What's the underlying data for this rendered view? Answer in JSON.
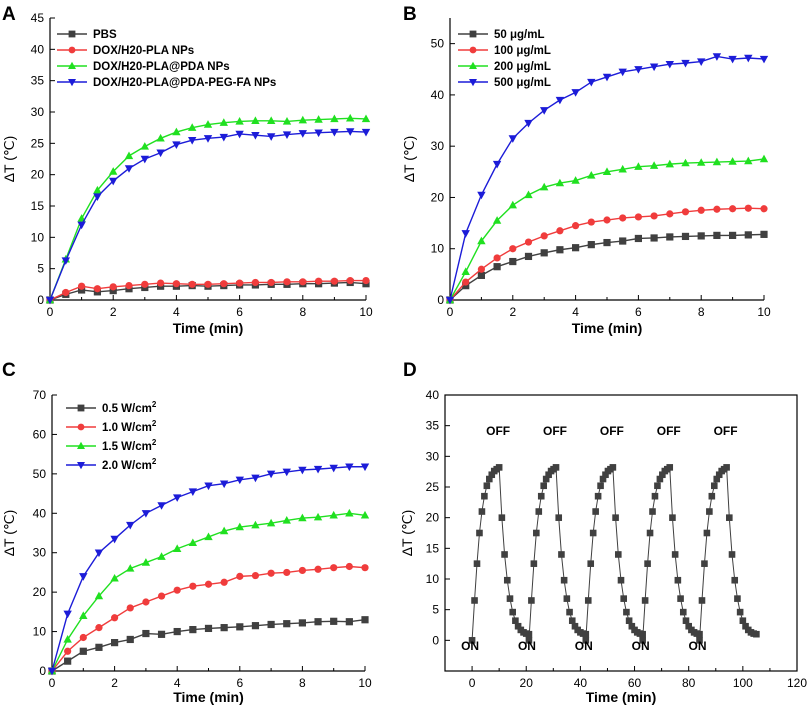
{
  "colors": {
    "black": "#404040",
    "red": "#f03c3c",
    "green": "#20e020",
    "blue": "#1c1cd8"
  },
  "chart_data": [
    {
      "panel": "A",
      "type": "line",
      "xlabel": "Time (min)",
      "ylabel": "ΔT (℃)",
      "xlim": [
        0,
        10
      ],
      "ylim": [
        0,
        45
      ],
      "xticks": [
        0,
        2,
        4,
        6,
        8,
        10
      ],
      "yticks": [
        0,
        5,
        10,
        15,
        20,
        25,
        30,
        35,
        40,
        45
      ],
      "x": [
        0,
        0.5,
        1,
        1.5,
        2,
        2.5,
        3,
        3.5,
        4,
        4.5,
        5,
        5.5,
        6,
        6.5,
        7,
        7.5,
        8,
        8.5,
        9,
        9.5,
        10
      ],
      "legend_position": "top-left",
      "series": [
        {
          "name": "PBS",
          "color": "black",
          "marker": "square",
          "values": [
            0,
            0.9,
            1.6,
            1.3,
            1.5,
            1.8,
            2.0,
            2.2,
            2.2,
            2.3,
            2.2,
            2.3,
            2.4,
            2.4,
            2.5,
            2.5,
            2.6,
            2.6,
            2.7,
            2.8,
            2.6
          ]
        },
        {
          "name": "DOX/H20-PLA NPs",
          "color": "red",
          "marker": "circle",
          "values": [
            0,
            1.2,
            2.2,
            1.8,
            2.1,
            2.3,
            2.5,
            2.7,
            2.6,
            2.5,
            2.5,
            2.6,
            2.7,
            2.8,
            2.8,
            2.9,
            2.9,
            3.0,
            3.0,
            3.1,
            3.1
          ]
        },
        {
          "name": "DOX/H20-PLA@PDA NPs",
          "color": "green",
          "marker": "triangle-up",
          "values": [
            0,
            6.5,
            13.0,
            17.5,
            20.5,
            23.0,
            24.5,
            25.8,
            26.8,
            27.5,
            28.0,
            28.3,
            28.5,
            28.6,
            28.6,
            28.5,
            28.7,
            28.8,
            28.9,
            29.0,
            28.9
          ]
        },
        {
          "name": "DOX/H20-PLA@PDA-PEG-FA NPs",
          "color": "blue",
          "marker": "triangle-down",
          "values": [
            0,
            6.3,
            12.0,
            16.5,
            19.0,
            21.0,
            22.5,
            23.5,
            24.8,
            25.5,
            25.8,
            26.0,
            26.5,
            26.3,
            26.1,
            26.4,
            26.6,
            26.7,
            26.8,
            26.9,
            26.8
          ]
        }
      ]
    },
    {
      "panel": "B",
      "type": "line",
      "xlabel": "Time (min)",
      "ylabel": "ΔT (℃)",
      "xlim": [
        0,
        10
      ],
      "ylim": [
        0,
        55
      ],
      "xticks": [
        0,
        2,
        4,
        6,
        8,
        10
      ],
      "yticks": [
        0,
        10,
        20,
        30,
        40,
        50
      ],
      "x": [
        0,
        0.5,
        1,
        1.5,
        2,
        2.5,
        3,
        3.5,
        4,
        4.5,
        5,
        5.5,
        6,
        6.5,
        7,
        7.5,
        8,
        8.5,
        9,
        9.5,
        10
      ],
      "legend_position": "top-left",
      "series": [
        {
          "name": "50 μg/mL",
          "color": "black",
          "marker": "square",
          "values": [
            0,
            2.8,
            4.8,
            6.5,
            7.5,
            8.5,
            9.2,
            9.8,
            10.2,
            10.8,
            11.2,
            11.5,
            12.0,
            12.1,
            12.3,
            12.4,
            12.5,
            12.6,
            12.6,
            12.7,
            12.8
          ]
        },
        {
          "name": "100 μg/mL",
          "color": "red",
          "marker": "circle",
          "values": [
            0,
            3.5,
            6.0,
            8.2,
            10.0,
            11.3,
            12.5,
            13.5,
            14.5,
            15.2,
            15.6,
            16.0,
            16.2,
            16.4,
            16.8,
            17.2,
            17.5,
            17.7,
            17.8,
            17.9,
            17.8
          ]
        },
        {
          "name": "200 μg/mL",
          "color": "green",
          "marker": "triangle-up",
          "values": [
            0,
            5.5,
            11.5,
            15.5,
            18.5,
            20.5,
            22.0,
            22.8,
            23.3,
            24.3,
            25.0,
            25.5,
            26.0,
            26.2,
            26.5,
            26.7,
            26.8,
            26.9,
            27.0,
            27.1,
            27.5
          ]
        },
        {
          "name": "500 μg/mL",
          "color": "blue",
          "marker": "triangle-down",
          "values": [
            0,
            13.0,
            20.5,
            26.5,
            31.5,
            34.5,
            37.0,
            39.0,
            40.5,
            42.5,
            43.5,
            44.5,
            45.0,
            45.5,
            46.0,
            46.2,
            46.5,
            47.5,
            47.0,
            47.2,
            47.0
          ]
        }
      ]
    },
    {
      "panel": "C",
      "type": "line",
      "xlabel": "Time (min)",
      "ylabel": "ΔT (℃)",
      "xlim": [
        0,
        10
      ],
      "ylim": [
        0,
        70
      ],
      "xticks": [
        0,
        2,
        4,
        6,
        8,
        10
      ],
      "yticks": [
        0,
        10,
        20,
        30,
        40,
        50,
        60,
        70
      ],
      "x": [
        0,
        0.5,
        1,
        1.5,
        2,
        2.5,
        3,
        3.5,
        4,
        4.5,
        5,
        5.5,
        6,
        6.5,
        7,
        7.5,
        8,
        8.5,
        9,
        9.5,
        10
      ],
      "legend_position": "top-left",
      "series": [
        {
          "name": "0.5 W/cm²",
          "label_text": "0.5 W/cm",
          "label_sup": "2",
          "color": "black",
          "marker": "square",
          "values": [
            0,
            2.5,
            5.0,
            6.0,
            7.2,
            8.0,
            9.5,
            9.3,
            10.0,
            10.5,
            10.8,
            11.0,
            11.2,
            11.5,
            11.8,
            12.0,
            12.2,
            12.5,
            12.6,
            12.5,
            13.0
          ]
        },
        {
          "name": "1.0 W/cm²",
          "label_text": "1.0 W/cm",
          "label_sup": "2",
          "color": "red",
          "marker": "circle",
          "values": [
            0,
            5.0,
            8.5,
            11.0,
            13.5,
            16.0,
            17.5,
            19.0,
            20.5,
            21.5,
            22.0,
            22.5,
            24.0,
            24.2,
            24.8,
            25.0,
            25.5,
            25.8,
            26.2,
            26.5,
            26.2
          ]
        },
        {
          "name": "1.5 W/cm²",
          "label_text": "1.5 W/cm",
          "label_sup": "2",
          "color": "green",
          "marker": "triangle-up",
          "values": [
            0,
            8.0,
            14.0,
            19.0,
            23.5,
            26.0,
            27.5,
            29.0,
            31.0,
            32.5,
            34.0,
            35.5,
            36.5,
            37.0,
            37.5,
            38.2,
            38.8,
            39.0,
            39.5,
            40.0,
            39.5
          ]
        },
        {
          "name": "2.0 W/cm²",
          "label_text": "2.0 W/cm",
          "label_sup": "2",
          "color": "blue",
          "marker": "triangle-down",
          "values": [
            0,
            14.5,
            24.0,
            30.0,
            33.5,
            37.0,
            40.0,
            42.0,
            44.0,
            45.5,
            47.0,
            47.5,
            48.5,
            49.0,
            50.0,
            50.5,
            51.0,
            51.2,
            51.5,
            51.8,
            51.8
          ]
        }
      ]
    },
    {
      "panel": "D",
      "type": "scatter",
      "xlabel": "Time (min)",
      "ylabel": "ΔT (℃)",
      "xlim": [
        -10,
        120
      ],
      "ylim": [
        -5,
        40
      ],
      "xticks": [
        0,
        20,
        40,
        60,
        80,
        100,
        120
      ],
      "yticks": [
        0,
        5,
        10,
        15,
        20,
        25,
        30,
        35,
        40
      ],
      "cycles": 5,
      "cycle_period_min": 21,
      "heating_min": 10,
      "cooling_min": 11,
      "peak": 28.2,
      "heat_curve": [
        0,
        6.5,
        12.5,
        17.5,
        21.0,
        23.5,
        25.2,
        26.3,
        27.0,
        27.6,
        27.9,
        28.2
      ],
      "cool_curve": [
        28.0,
        20.0,
        14.0,
        9.8,
        6.8,
        4.6,
        3.2,
        2.3,
        1.7,
        1.3,
        1.1,
        1.0
      ],
      "annotations": {
        "off_labels": [
          "OFF",
          "OFF",
          "OFF",
          "OFF",
          "OFF"
        ],
        "on_labels": [
          "ON",
          "ON",
          "ON",
          "ON",
          "ON"
        ]
      }
    }
  ]
}
